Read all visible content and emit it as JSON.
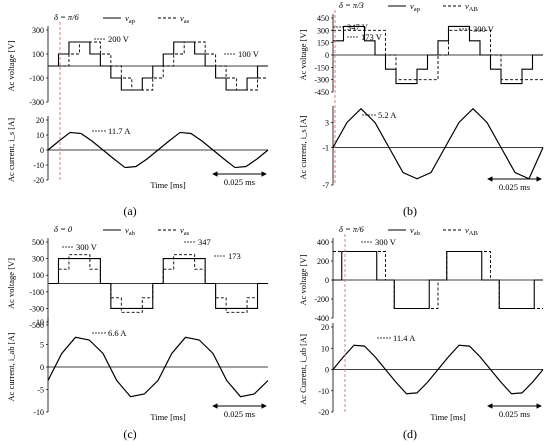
{
  "panels": [
    {
      "id": "a",
      "label": "(a)",
      "delta_label": "δ = π/6",
      "top": {
        "ylabel": "Ac voltage [V]",
        "yticks": [
          "300",
          "100",
          "-100",
          "-300"
        ],
        "legend": [
          "v_ap",
          "v_as"
        ],
        "annotations": [
          "200 V",
          "100 V"
        ]
      },
      "bottom": {
        "ylabel": "Ac current, i_s [A]",
        "yticks": [
          "20",
          "10",
          "0",
          "-10",
          "-20"
        ],
        "annotation": "11.7 A",
        "xlabel": "Time [ms]",
        "period": "0.025 ms"
      }
    },
    {
      "id": "b",
      "label": "(b)",
      "delta_label": "δ = π/3",
      "top": {
        "ylabel": "Ac voltage [V]",
        "yticks": [
          "450",
          "300",
          "150",
          "0",
          "-150",
          "-300",
          "-450"
        ],
        "legend": [
          "v_ap",
          "v_AB"
        ],
        "annotations": [
          "347 V",
          "173 V",
          "300 V"
        ]
      },
      "bottom": {
        "ylabel": "Ac current, i_s [A]",
        "yticks": [
          "3",
          "-1",
          "-7"
        ],
        "annotation": "5.2 A",
        "xlabel": "",
        "period": "0.025 ms"
      }
    },
    {
      "id": "c",
      "label": "(c)",
      "delta_label": "δ = 0",
      "top": {
        "ylabel": "Ac voltage [V]",
        "yticks": [
          "500",
          "300",
          "100",
          "-100",
          "-300",
          "-500"
        ],
        "legend": [
          "v_ab",
          "v_as"
        ],
        "annotations": [
          "300 V",
          "347",
          "173"
        ]
      },
      "bottom": {
        "ylabel": "Ac current, i_ab [A]",
        "yticks": [
          "10",
          "5",
          "0",
          "-5",
          "-10"
        ],
        "annotation": "6.6 A",
        "xlabel": "Time [ms]",
        "period": "0.025 ms"
      }
    },
    {
      "id": "d",
      "label": "(d)",
      "delta_label": "δ = π/6",
      "top": {
        "ylabel": "Ac voltage [V]",
        "yticks": [
          "400",
          "200",
          "0",
          "-200",
          "-400"
        ],
        "legend": [
          "v_ab",
          "v_AB"
        ],
        "annotations": [
          "300 V"
        ]
      },
      "bottom": {
        "ylabel": "Ac Current, i_ab [A]",
        "yticks": [
          "20",
          "10",
          "0",
          "-10",
          "-20"
        ],
        "annotation": "11.4 A",
        "xlabel": "Time [ms]",
        "period": "0.025 ms"
      }
    }
  ],
  "chart_data": [
    {
      "type": "line",
      "panel": "a",
      "title": "",
      "ylabel": "Ac voltage [V]",
      "ylim": [
        -300,
        300
      ],
      "series": [
        {
          "name": "v_ap",
          "style": "solid",
          "values": [
            0,
            100,
            200,
            200,
            100,
            0,
            -100,
            -200,
            -200,
            -100,
            0,
            100,
            200,
            200,
            100,
            0,
            -100,
            -200,
            -200,
            -100,
            0
          ]
        },
        {
          "name": "v_as",
          "style": "dashed",
          "values": [
            0,
            0,
            100,
            200,
            200,
            100,
            0,
            -100,
            -200,
            -200,
            -100,
            0,
            100,
            200,
            200,
            100,
            0,
            -100,
            -200,
            -200,
            -100
          ]
        }
      ]
    },
    {
      "type": "line",
      "panel": "a",
      "ylabel": "Ac current, i_s [A]",
      "xlabel": "Time [ms]",
      "ylim": [
        -20,
        20
      ],
      "series": [
        {
          "name": "",
          "style": "solid",
          "values": [
            0,
            6,
            11.7,
            11,
            6,
            0,
            -6,
            -11.7,
            -11,
            -6,
            0,
            6,
            11.7,
            11,
            6,
            0,
            -6,
            -11.7,
            -11,
            -6,
            0
          ]
        }
      ]
    },
    {
      "type": "line",
      "panel": "b",
      "ylabel": "Ac voltage [V]",
      "ylim": [
        -450,
        450
      ],
      "series": [
        {
          "name": "v_ap",
          "style": "solid",
          "values": [
            173,
            347,
            347,
            173,
            0,
            -173,
            -347,
            -347,
            -173,
            0,
            173,
            347,
            347,
            173,
            0,
            -173,
            -347,
            -347,
            -173,
            0
          ]
        },
        {
          "name": "v_AB",
          "style": "dashed",
          "values": [
            300,
            300,
            300,
            300,
            300,
            0,
            -300,
            -300,
            -300,
            -300,
            0,
            300,
            300,
            300,
            300,
            0,
            -300,
            -300,
            -300,
            -300
          ]
        }
      ]
    },
    {
      "type": "line",
      "panel": "b",
      "ylabel": "Ac current, i_s [A]",
      "ylim": [
        -7,
        5
      ],
      "series": [
        {
          "name": "",
          "style": "solid",
          "values": [
            -1,
            3,
            5.2,
            3,
            -1,
            -5,
            -6,
            -5,
            -1,
            3,
            5.2,
            3,
            -1,
            -5,
            -6,
            -1
          ]
        }
      ]
    },
    {
      "type": "line",
      "panel": "c",
      "ylabel": "Ac voltage [V]",
      "ylim": [
        -500,
        500
      ],
      "series": [
        {
          "name": "v_ab",
          "style": "solid",
          "values": [
            0,
            300,
            300,
            300,
            300,
            0,
            -300,
            -300,
            -300,
            -300,
            0,
            300,
            300,
            300,
            300,
            0,
            -300,
            -300,
            -300,
            -300,
            0
          ]
        },
        {
          "name": "v_as",
          "style": "dashed",
          "values": [
            0,
            173,
            347,
            347,
            173,
            0,
            -173,
            -347,
            -347,
            -173,
            0,
            173,
            347,
            347,
            173,
            0,
            -173,
            -347,
            -347,
            -173,
            0
          ]
        }
      ]
    },
    {
      "type": "line",
      "panel": "c",
      "ylabel": "Ac current, i_ab [A]",
      "xlabel": "Time [ms]",
      "ylim": [
        -10,
        10
      ],
      "series": [
        {
          "name": "",
          "style": "solid",
          "values": [
            -3,
            3,
            6.6,
            6,
            3,
            -3,
            -6.6,
            -6,
            -3,
            3,
            6.6,
            6,
            3,
            -3,
            -6.6,
            -6,
            -3
          ]
        }
      ]
    },
    {
      "type": "line",
      "panel": "d",
      "ylabel": "Ac voltage [V]",
      "ylim": [
        -400,
        400
      ],
      "series": [
        {
          "name": "v_ab",
          "style": "solid",
          "values": [
            0,
            300,
            300,
            300,
            300,
            0,
            0,
            -300,
            -300,
            -300,
            -300,
            0,
            0,
            300,
            300,
            300,
            300,
            0,
            0,
            -300,
            -300,
            -300,
            -300,
            0
          ]
        },
        {
          "name": "v_AB",
          "style": "dashed",
          "values": [
            300,
            300,
            300,
            300,
            300,
            300,
            0,
            -300,
            -300,
            -300,
            -300,
            -300,
            0,
            300,
            300,
            300,
            300,
            300,
            0,
            -300,
            -300,
            -300,
            -300,
            -300
          ]
        }
      ]
    },
    {
      "type": "line",
      "panel": "d",
      "ylabel": "Ac Current, i_ab [A]",
      "xlabel": "Time [ms]",
      "ylim": [
        -20,
        20
      ],
      "series": [
        {
          "name": "",
          "style": "solid",
          "values": [
            0,
            6,
            11.4,
            11,
            6,
            0,
            -6,
            -11.4,
            -11,
            -6,
            0,
            6,
            11.4,
            11,
            6,
            0,
            -6,
            -11.4,
            -11,
            -6,
            0
          ]
        }
      ]
    }
  ]
}
